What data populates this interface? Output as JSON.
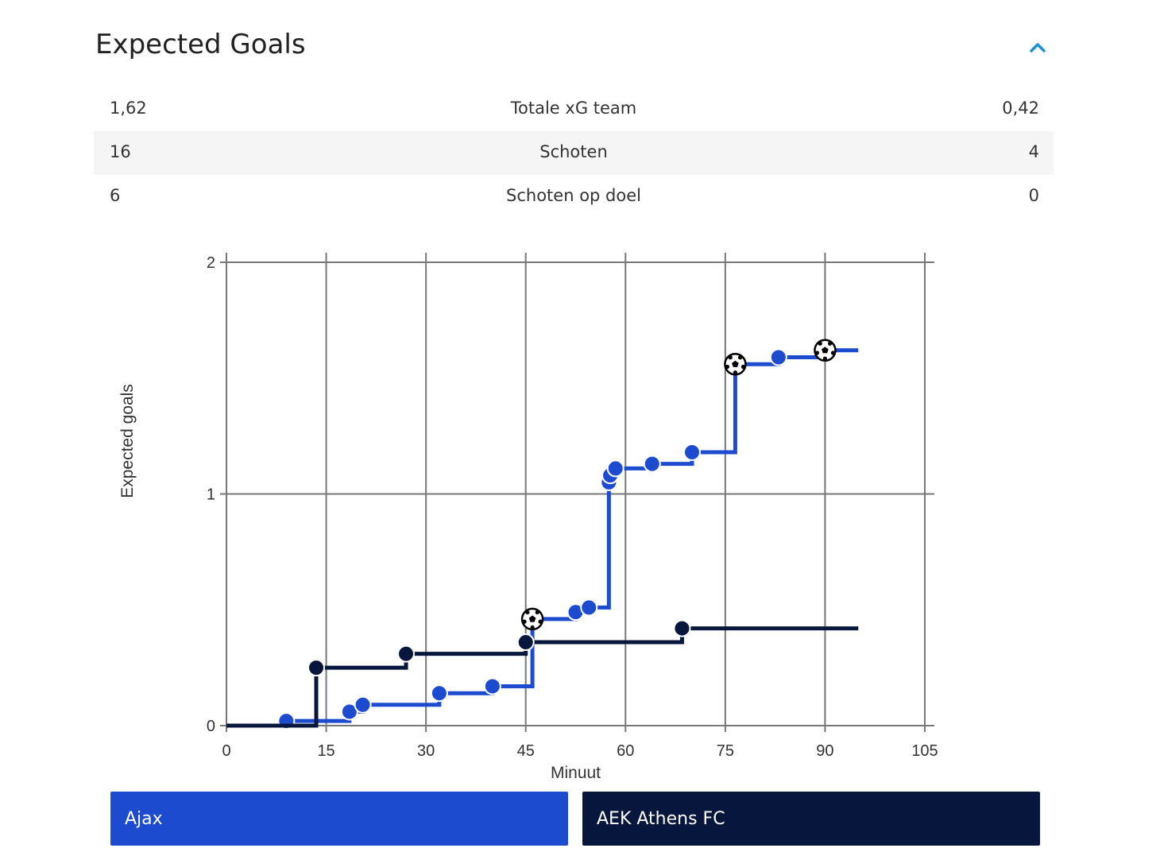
{
  "header": {
    "title": "Expected Goals"
  },
  "stats": [
    {
      "left": "1,62",
      "label": "Totale xG team",
      "right": "0,42"
    },
    {
      "left": "16",
      "label": "Schoten",
      "right": "4"
    },
    {
      "left": "6",
      "label": "Schoten op doel",
      "right": "0"
    }
  ],
  "colors": {
    "ajax": "#1c4bcf",
    "aek": "#07163d",
    "accent": "#1a8fd6"
  },
  "chart_data": {
    "type": "line",
    "xlabel": "Minuut",
    "ylabel": "Expected goals",
    "xlim": [
      0,
      105
    ],
    "ylim": [
      0,
      2
    ],
    "xticks": [
      0,
      15,
      30,
      45,
      60,
      75,
      90,
      105
    ],
    "yticks": [
      0,
      1,
      2
    ],
    "grid": true,
    "step": true,
    "series": [
      {
        "name": "Ajax",
        "color": "#1c4bcf",
        "points": [
          {
            "x": 9,
            "y": 0.02,
            "goal": false
          },
          {
            "x": 18.5,
            "y": 0.06,
            "goal": false
          },
          {
            "x": 20.5,
            "y": 0.09,
            "goal": false
          },
          {
            "x": 32,
            "y": 0.14,
            "goal": false
          },
          {
            "x": 40,
            "y": 0.17,
            "goal": false
          },
          {
            "x": 46,
            "y": 0.46,
            "goal": true
          },
          {
            "x": 52.5,
            "y": 0.49,
            "goal": false
          },
          {
            "x": 54.5,
            "y": 0.51,
            "goal": false
          },
          {
            "x": 57.5,
            "y": 1.05,
            "goal": false
          },
          {
            "x": 57.7,
            "y": 1.08,
            "goal": false
          },
          {
            "x": 58.5,
            "y": 1.11,
            "goal": false
          },
          {
            "x": 64,
            "y": 1.13,
            "goal": false
          },
          {
            "x": 70,
            "y": 1.18,
            "goal": false
          },
          {
            "x": 76.5,
            "y": 1.56,
            "goal": true
          },
          {
            "x": 83,
            "y": 1.59,
            "goal": false
          },
          {
            "x": 90,
            "y": 1.62,
            "goal": true
          }
        ],
        "end_x": 95
      },
      {
        "name": "AEK Athens FC",
        "color": "#07163d",
        "points": [
          {
            "x": 13.5,
            "y": 0.25,
            "goal": false
          },
          {
            "x": 27,
            "y": 0.31,
            "goal": false
          },
          {
            "x": 45,
            "y": 0.36,
            "goal": false
          },
          {
            "x": 68.5,
            "y": 0.42,
            "goal": false
          }
        ],
        "end_x": 95
      }
    ]
  },
  "legend": {
    "ajax": "Ajax",
    "aek": "AEK Athens FC"
  }
}
